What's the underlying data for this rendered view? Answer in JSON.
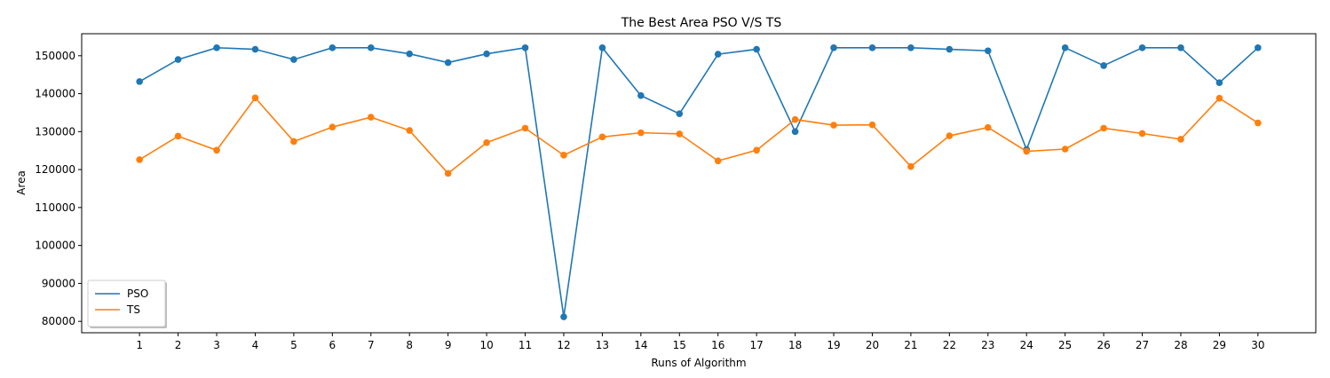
{
  "chart_data": {
    "type": "line",
    "title": "The Best Area PSO V/S TS",
    "xlabel": "Runs of Algorithm",
    "ylabel": "Area",
    "x": [
      1,
      2,
      3,
      4,
      5,
      6,
      7,
      8,
      9,
      10,
      11,
      12,
      13,
      14,
      15,
      16,
      17,
      18,
      19,
      20,
      21,
      22,
      23,
      24,
      25,
      26,
      27,
      28,
      29,
      30
    ],
    "xlim": [
      -0.5,
      31.5
    ],
    "ylim": [
      77000,
      155800
    ],
    "yticks": [
      80000,
      90000,
      100000,
      110000,
      120000,
      130000,
      140000,
      150000
    ],
    "grid": false,
    "legend_position": "lower-left",
    "series": [
      {
        "name": "PSO",
        "color": "#1f77b4",
        "marker": "circle",
        "values": [
          143200,
          149000,
          152100,
          151700,
          149000,
          152100,
          152100,
          150500,
          148200,
          150500,
          152100,
          81200,
          152100,
          139500,
          134700,
          150400,
          151700,
          130000,
          152100,
          152100,
          152100,
          151700,
          151300,
          125300,
          152100,
          147400,
          152100,
          152100,
          142900,
          152100
        ]
      },
      {
        "name": "TS",
        "color": "#ff7f0e",
        "marker": "circle",
        "values": [
          122600,
          128800,
          125100,
          138900,
          127400,
          131200,
          133800,
          130300,
          119000,
          127100,
          130900,
          123800,
          128600,
          129700,
          129400,
          122300,
          125100,
          133200,
          131700,
          131800,
          120800,
          128900,
          131100,
          124800,
          125400,
          130900,
          129500,
          128000,
          138800,
          132300
        ]
      }
    ]
  }
}
